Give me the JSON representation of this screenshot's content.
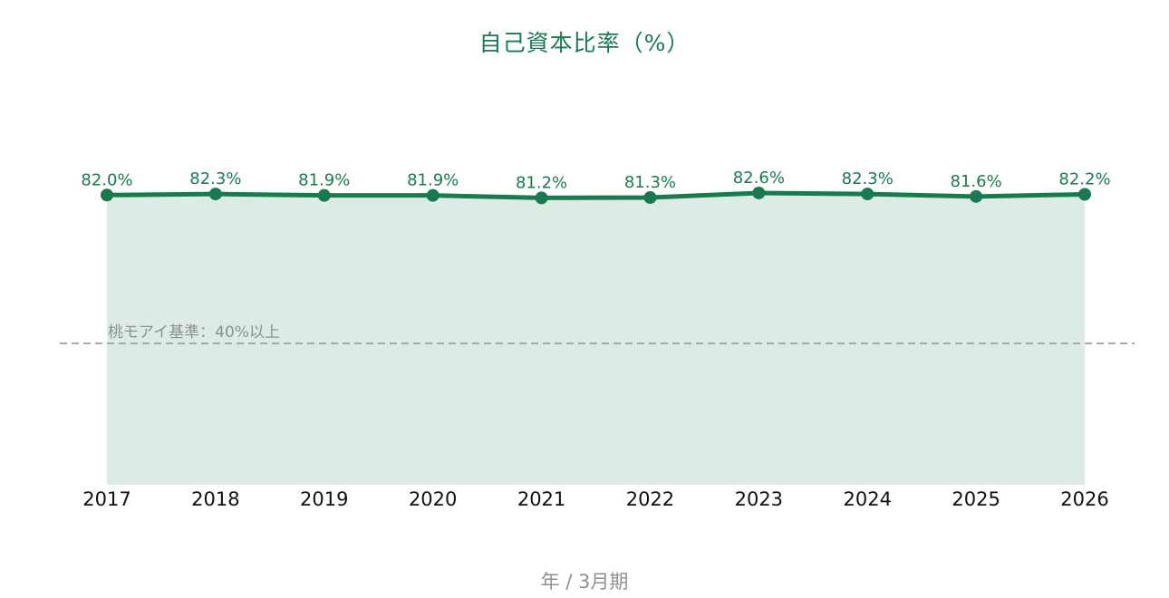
{
  "chart_data": {
    "type": "area",
    "title": "自己資本比率（%）",
    "xlabel": "年 / 3月期",
    "ylabel": "",
    "categories": [
      "2017",
      "2018",
      "2019",
      "2020",
      "2021",
      "2022",
      "2023",
      "2024",
      "2025",
      "2026"
    ],
    "series": [
      {
        "values": [
          82.0,
          82.3,
          81.9,
          81.9,
          81.2,
          81.3,
          82.6,
          82.3,
          81.6,
          82.2
        ],
        "labels": [
          "82.0%",
          "82.3%",
          "81.9%",
          "81.9%",
          "81.2%",
          "81.3%",
          "82.6%",
          "82.3%",
          "81.6%",
          "82.2%"
        ]
      }
    ],
    "ylim": [
      0,
      100
    ],
    "grid": false,
    "reference_line": {
      "value": 40,
      "label": "桃モアイ基準：40%以上"
    },
    "colors": {
      "line": "#1a7a4f",
      "fill": "#dcece4",
      "reference": "#a8a8a8",
      "title": "#1a7a4f"
    }
  }
}
